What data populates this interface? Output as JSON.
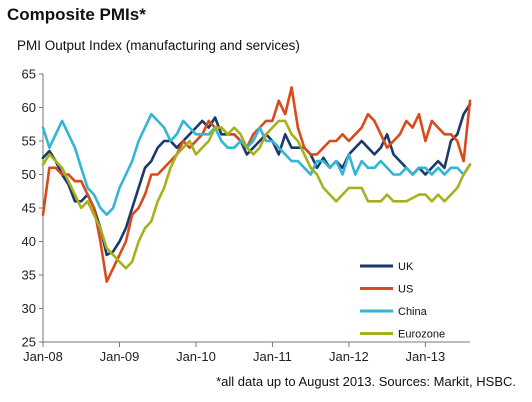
{
  "chart_data": {
    "type": "line",
    "title": "Composite PMIs*",
    "subtitle": "PMI Output Index (manufacturing and services)",
    "footnote": "*all data up to August 2013. Sources: Markit, HSBC.",
    "ylim": [
      25,
      65
    ],
    "yticks": [
      25,
      30,
      35,
      40,
      45,
      50,
      55,
      60,
      65
    ],
    "xlim": [
      "2008-01",
      "2013-08"
    ],
    "xticks": [
      {
        "label": "Jan-08",
        "x": "2008-01"
      },
      {
        "label": "Jan-09",
        "x": "2009-01"
      },
      {
        "label": "Jan-10",
        "x": "2010-01"
      },
      {
        "label": "Jan-11",
        "x": "2011-01"
      },
      {
        "label": "Jan-12",
        "x": "2012-01"
      },
      {
        "label": "Jan-13",
        "x": "2013-01"
      }
    ],
    "grid": false,
    "legend": "bottom-right",
    "x": [
      "2008-01",
      "2008-02",
      "2008-03",
      "2008-04",
      "2008-05",
      "2008-06",
      "2008-07",
      "2008-08",
      "2008-09",
      "2008-10",
      "2008-11",
      "2008-12",
      "2009-01",
      "2009-02",
      "2009-03",
      "2009-04",
      "2009-05",
      "2009-06",
      "2009-07",
      "2009-08",
      "2009-09",
      "2009-10",
      "2009-11",
      "2009-12",
      "2010-01",
      "2010-02",
      "2010-03",
      "2010-04",
      "2010-05",
      "2010-06",
      "2010-07",
      "2010-08",
      "2010-09",
      "2010-10",
      "2010-11",
      "2010-12",
      "2011-01",
      "2011-02",
      "2011-03",
      "2011-04",
      "2011-05",
      "2011-06",
      "2011-07",
      "2011-08",
      "2011-09",
      "2011-10",
      "2011-11",
      "2011-12",
      "2012-01",
      "2012-02",
      "2012-03",
      "2012-04",
      "2012-05",
      "2012-06",
      "2012-07",
      "2012-08",
      "2012-09",
      "2012-10",
      "2012-11",
      "2012-12",
      "2013-01",
      "2013-02",
      "2013-03",
      "2013-04",
      "2013-05",
      "2013-06",
      "2013-07",
      "2013-08"
    ],
    "series": [
      {
        "name": "UK",
        "color": "#1b3a6b",
        "values": [
          52.5,
          53.5,
          52,
          50,
          48.5,
          46,
          46,
          47,
          45,
          42,
          38,
          38.5,
          40,
          42,
          45,
          48,
          51,
          52,
          54,
          55,
          55,
          54,
          55,
          56,
          57,
          58,
          57,
          58.5,
          56,
          56,
          56,
          55,
          53,
          54,
          55,
          56,
          55,
          53,
          56,
          54,
          54,
          54,
          53,
          51,
          52.5,
          51,
          52,
          51,
          53,
          54,
          55,
          54,
          53,
          54,
          56,
          53,
          52,
          51,
          50,
          51,
          50,
          51,
          52,
          51,
          55,
          56,
          59,
          60.5
        ]
      },
      {
        "name": "US",
        "color": "#d94a1c",
        "values": [
          44,
          51,
          51,
          50,
          50,
          49,
          49,
          47,
          45,
          40,
          34,
          36,
          38,
          40,
          44,
          45,
          47,
          50,
          50,
          51,
          52,
          53,
          55,
          54,
          55,
          56,
          58,
          57,
          57,
          56,
          56,
          55,
          54,
          56,
          57,
          58,
          58,
          61,
          59,
          63,
          57,
          54,
          53,
          53,
          54,
          55,
          55,
          56,
          55,
          56,
          57,
          59,
          58,
          56,
          54,
          55,
          56,
          58,
          57,
          59,
          55,
          58,
          57,
          56,
          56,
          55,
          52,
          61
        ]
      },
      {
        "name": "China",
        "color": "#33b5d6",
        "values": [
          57,
          54,
          56,
          58,
          56,
          54,
          51,
          48,
          47,
          45,
          44,
          45,
          48,
          50,
          52,
          55,
          57,
          59,
          58,
          57,
          55,
          56,
          58,
          57,
          56,
          56,
          56,
          57,
          55,
          54,
          54,
          55,
          54,
          55,
          57,
          55,
          55,
          54,
          53,
          52,
          52,
          51,
          50,
          52,
          52,
          51,
          52,
          50,
          53,
          50,
          52,
          51,
          51,
          52,
          51,
          50,
          50,
          51,
          50,
          51,
          51,
          50,
          51,
          50,
          51,
          51,
          50,
          51.5
        ]
      },
      {
        "name": "Eurozone",
        "color": "#a6b21b",
        "values": [
          51.5,
          53,
          52,
          51,
          49,
          47,
          45,
          46,
          44,
          42,
          39,
          38,
          37,
          36,
          37,
          40,
          42,
          43,
          46,
          48,
          51,
          53,
          54,
          55,
          53,
          54,
          55,
          57,
          57,
          56,
          57,
          56,
          54,
          53,
          54,
          56,
          57,
          58,
          58,
          56,
          55,
          53,
          51,
          50,
          48,
          47,
          46,
          47,
          48,
          48,
          48,
          46,
          46,
          46,
          47,
          46,
          46,
          46,
          46.5,
          47,
          47,
          46,
          47,
          46,
          47,
          48,
          50,
          51.5
        ]
      }
    ]
  }
}
